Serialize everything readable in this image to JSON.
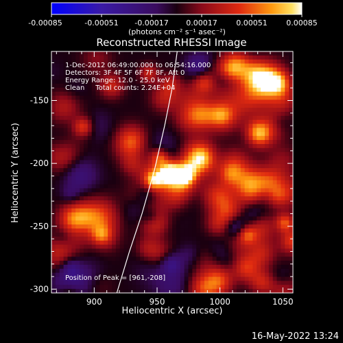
{
  "colorbar": {
    "ticks": [
      "-0.00085",
      "-0.00051",
      "-0.00017",
      "0.00017",
      "0.00051",
      "0.00085"
    ],
    "units_text": "(photons cm⁻² s⁻¹ asec⁻²)"
  },
  "chart_data": {
    "type": "heatmap",
    "title": "Reconstructed RHESSI Image",
    "xlabel": "Heliocentric X (arcsec)",
    "ylabel": "Heliocentric Y (arcsec)",
    "xlim": [
      866,
      1058
    ],
    "ylim": [
      -303,
      -111
    ],
    "x_ticks": [
      900,
      950,
      1000,
      1050
    ],
    "y_ticks": [
      -150,
      -200,
      -250,
      -300
    ],
    "clim": [
      -0.00085,
      0.00085
    ],
    "colormap": "blue-purple-red-yellow-white",
    "annotations": [
      "1-Dec-2012 06:49:00.000 to 06:54:16.000",
      "Detectors: 3F 4F 5F 6F 7F 8F, Att 0",
      "Energy Range: 12.0 - 25.0 keV",
      "Clean     Total counts: 2.24E+04"
    ],
    "peak_label": "Position of Peak = [961,-208]",
    "peak": {
      "x": 961,
      "y": -208,
      "value": 0.00085
    },
    "limb_points": [
      [
        918,
        -303
      ],
      [
        928,
        -270
      ],
      [
        938,
        -240
      ],
      [
        948,
        -205
      ],
      [
        956,
        -170
      ],
      [
        962,
        -140
      ],
      [
        966,
        -111
      ]
    ]
  },
  "footer": {
    "timestamp": "16-May-2022 13:24"
  }
}
